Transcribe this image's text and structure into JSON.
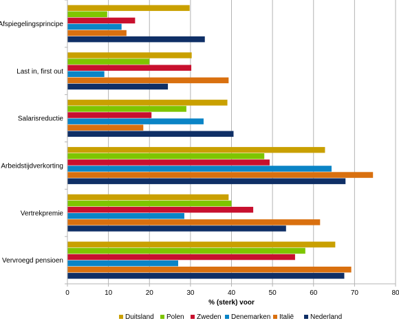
{
  "chart_data": {
    "type": "bar",
    "orientation": "horizontal",
    "xlabel": "% (sterk) voor",
    "xlim": [
      0,
      80
    ],
    "xticks": [
      0,
      10,
      20,
      30,
      40,
      50,
      60,
      70,
      80
    ],
    "grid": true,
    "legend_position": "bottom",
    "categories": [
      "Afspiegelingsprincipe",
      "Last in, first out",
      "Salarisreductie",
      "Arbeidstijdverkorting",
      "Vertrekpremie",
      "Vervroegd pensioen"
    ],
    "series": [
      {
        "name": "Duitsland",
        "color": "#c9a000",
        "values": [
          29.8,
          30.3,
          39.0,
          62.8,
          39.3,
          65.3
        ]
      },
      {
        "name": "Polen",
        "color": "#7ec500",
        "values": [
          9.7,
          20.0,
          29.0,
          48.0,
          40.0,
          58.0
        ]
      },
      {
        "name": "Zweden",
        "color": "#c8102e",
        "values": [
          16.5,
          30.2,
          20.5,
          49.3,
          45.3,
          55.5
        ]
      },
      {
        "name": "Denemarken",
        "color": "#0a84c6",
        "values": [
          13.2,
          9.0,
          33.2,
          64.4,
          28.5,
          27.0
        ]
      },
      {
        "name": "Italië",
        "color": "#d9700f",
        "values": [
          14.4,
          39.3,
          18.5,
          74.5,
          61.6,
          69.2
        ]
      },
      {
        "name": "Nederland",
        "color": "#0f2f66",
        "values": [
          33.5,
          24.5,
          40.5,
          67.8,
          53.3,
          67.5
        ]
      }
    ]
  }
}
